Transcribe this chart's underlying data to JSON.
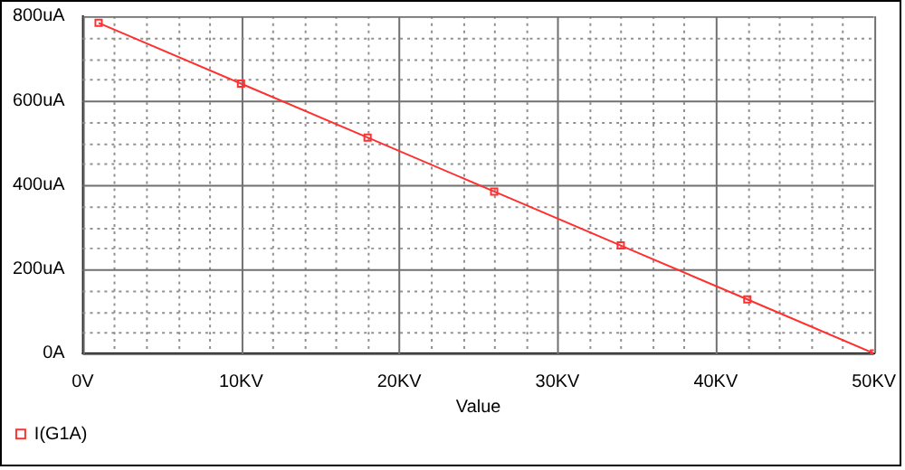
{
  "chart_data": {
    "type": "line",
    "xlabel": "Value",
    "x": [
      1,
      10,
      18,
      26,
      34,
      42,
      50
    ],
    "series": [
      {
        "name": "I(G1A)",
        "color": "#ff3030",
        "values": [
          784,
          640,
          512,
          384,
          256,
          128,
          0
        ]
      }
    ],
    "xlim": [
      0,
      50
    ],
    "xticks": [
      {
        "value": 0,
        "label": "0V"
      },
      {
        "value": 2,
        "label": null
      },
      {
        "value": 4,
        "label": null
      },
      {
        "value": 6,
        "label": null
      },
      {
        "value": 8,
        "label": null
      },
      {
        "value": 10,
        "label": "10KV"
      },
      {
        "value": 12,
        "label": null
      },
      {
        "value": 14,
        "label": null
      },
      {
        "value": 16,
        "label": null
      },
      {
        "value": 18,
        "label": null
      },
      {
        "value": 20,
        "label": "20KV"
      },
      {
        "value": 22,
        "label": null
      },
      {
        "value": 24,
        "label": null
      },
      {
        "value": 26,
        "label": null
      },
      {
        "value": 28,
        "label": null
      },
      {
        "value": 30,
        "label": "30KV"
      },
      {
        "value": 32,
        "label": null
      },
      {
        "value": 34,
        "label": null
      },
      {
        "value": 36,
        "label": null
      },
      {
        "value": 38,
        "label": null
      },
      {
        "value": 40,
        "label": "40KV"
      },
      {
        "value": 42,
        "label": null
      },
      {
        "value": 44,
        "label": null
      },
      {
        "value": 46,
        "label": null
      },
      {
        "value": 48,
        "label": null
      },
      {
        "value": 50,
        "label": "50KV"
      }
    ],
    "ylim": [
      0,
      800
    ],
    "yticks": [
      {
        "value": 0,
        "label": "0A"
      },
      {
        "value": 50,
        "label": null
      },
      {
        "value": 100,
        "label": null
      },
      {
        "value": 150,
        "label": null
      },
      {
        "value": 200,
        "label": "200uA"
      },
      {
        "value": 250,
        "label": null
      },
      {
        "value": 300,
        "label": null
      },
      {
        "value": 350,
        "label": null
      },
      {
        "value": 400,
        "label": "400uA"
      },
      {
        "value": 450,
        "label": null
      },
      {
        "value": 500,
        "label": null
      },
      {
        "value": 550,
        "label": null
      },
      {
        "value": 600,
        "label": "600uA"
      },
      {
        "value": 650,
        "label": null
      },
      {
        "value": 700,
        "label": null
      },
      {
        "value": 750,
        "label": null
      },
      {
        "value": 800,
        "label": "800uA"
      }
    ],
    "grid": true,
    "legend": "bottom left",
    "marker": "square",
    "line_style": "solid"
  }
}
